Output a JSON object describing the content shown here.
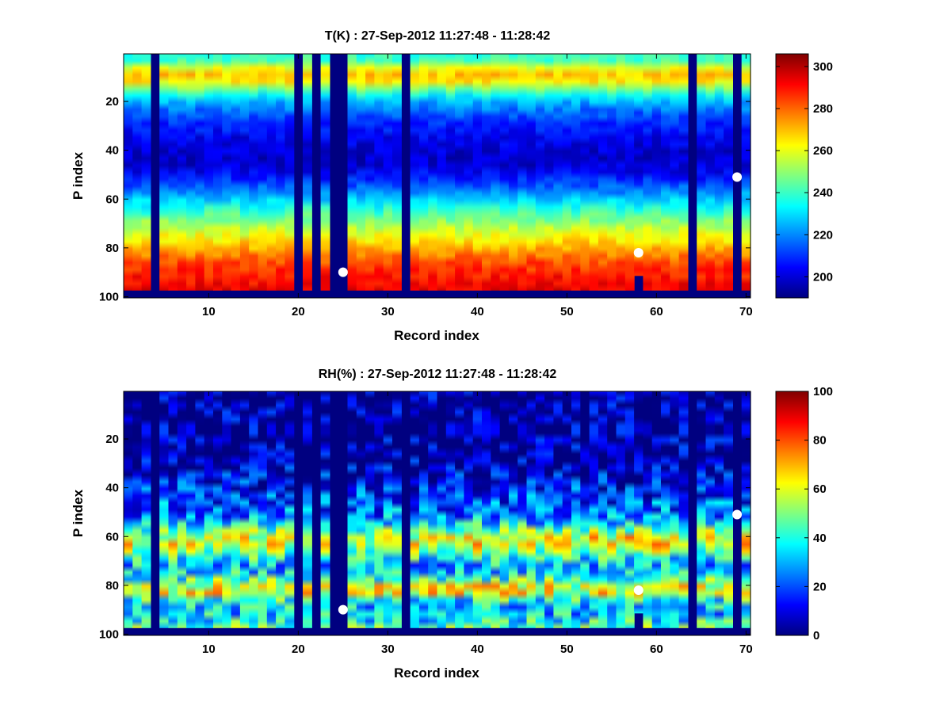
{
  "chart_data": [
    {
      "type": "heatmap",
      "title": "T(K) : 27-Sep-2012 11:27:48 - 11:28:42",
      "xlabel": "Record index",
      "ylabel": "P index",
      "xlim": [
        0.5,
        70.5
      ],
      "ylim": [
        0.5,
        100.5
      ],
      "y_reversed": true,
      "x_ticks": [
        10,
        20,
        30,
        40,
        50,
        60,
        70
      ],
      "x_tick_labels": [
        "10",
        "20",
        "30",
        "40",
        "50",
        "60",
        "70"
      ],
      "y_ticks": [
        20,
        40,
        60,
        80,
        100
      ],
      "y_tick_labels": [
        "20",
        "40",
        "60",
        "80",
        "100"
      ],
      "colormap": "jet",
      "clim": [
        190,
        306
      ],
      "colorbar_ticks": [
        200,
        220,
        240,
        260,
        280,
        300
      ],
      "colorbar_tick_labels": [
        "200",
        "220",
        "240",
        "260",
        "280",
        "300"
      ],
      "bg_value": 190,
      "gap_records": [
        4,
        20,
        22,
        24,
        25,
        32,
        64,
        69
      ],
      "valid_bottom_p": 97,
      "truncated_records": [
        {
          "record": 58,
          "max_p": 91
        },
        {
          "record": 69,
          "max_p": 51
        }
      ],
      "profile": [
        {
          "p": 1,
          "v": 238
        },
        {
          "p": 4,
          "v": 242
        },
        {
          "p": 7,
          "v": 262
        },
        {
          "p": 10,
          "v": 270
        },
        {
          "p": 13,
          "v": 262
        },
        {
          "p": 16,
          "v": 242
        },
        {
          "p": 20,
          "v": 225
        },
        {
          "p": 25,
          "v": 215
        },
        {
          "p": 30,
          "v": 208
        },
        {
          "p": 35,
          "v": 203
        },
        {
          "p": 40,
          "v": 200
        },
        {
          "p": 45,
          "v": 198
        },
        {
          "p": 50,
          "v": 205
        },
        {
          "p": 55,
          "v": 215
        },
        {
          "p": 60,
          "v": 228
        },
        {
          "p": 65,
          "v": 240
        },
        {
          "p": 70,
          "v": 252
        },
        {
          "p": 75,
          "v": 262
        },
        {
          "p": 80,
          "v": 272
        },
        {
          "p": 85,
          "v": 282
        },
        {
          "p": 90,
          "v": 288
        },
        {
          "p": 95,
          "v": 292
        },
        {
          "p": 97,
          "v": 294
        }
      ],
      "variation": 6,
      "markers": [
        {
          "record": 25,
          "p": 90
        },
        {
          "record": 58,
          "p": 82
        },
        {
          "record": 69,
          "p": 51
        }
      ]
    },
    {
      "type": "heatmap",
      "title": "RH(%) : 27-Sep-2012 11:27:48 - 11:28:42",
      "xlabel": "Record index",
      "ylabel": "P index",
      "xlim": [
        0.5,
        70.5
      ],
      "ylim": [
        0.5,
        100.5
      ],
      "y_reversed": true,
      "x_ticks": [
        10,
        20,
        30,
        40,
        50,
        60,
        70
      ],
      "x_tick_labels": [
        "10",
        "20",
        "30",
        "40",
        "50",
        "60",
        "70"
      ],
      "y_ticks": [
        20,
        40,
        60,
        80,
        100
      ],
      "y_tick_labels": [
        "20",
        "40",
        "60",
        "80",
        "100"
      ],
      "colormap": "jet",
      "clim": [
        0,
        100
      ],
      "colorbar_ticks": [
        0,
        20,
        40,
        60,
        80,
        100
      ],
      "colorbar_tick_labels": [
        "0",
        "20",
        "40",
        "60",
        "80",
        "100"
      ],
      "bg_value": 0,
      "gap_records": [
        4,
        20,
        22,
        24,
        25,
        32,
        64,
        69
      ],
      "valid_bottom_p": 97,
      "truncated_records": [
        {
          "record": 58,
          "max_p": 91
        },
        {
          "record": 69,
          "max_p": 51
        }
      ],
      "profile": [
        {
          "p": 1,
          "v": 2
        },
        {
          "p": 25,
          "v": 3
        },
        {
          "p": 32,
          "v": 6
        },
        {
          "p": 38,
          "v": 12
        },
        {
          "p": 45,
          "v": 20
        },
        {
          "p": 52,
          "v": 25
        },
        {
          "p": 56,
          "v": 40
        },
        {
          "p": 60,
          "v": 60
        },
        {
          "p": 64,
          "v": 62
        },
        {
          "p": 68,
          "v": 40
        },
        {
          "p": 72,
          "v": 30
        },
        {
          "p": 76,
          "v": 38
        },
        {
          "p": 80,
          "v": 58
        },
        {
          "p": 83,
          "v": 60
        },
        {
          "p": 86,
          "v": 38
        },
        {
          "p": 90,
          "v": 30
        },
        {
          "p": 94,
          "v": 38
        },
        {
          "p": 97,
          "v": 45
        }
      ],
      "variation": 18,
      "markers": [
        {
          "record": 25,
          "p": 90
        },
        {
          "record": 58,
          "p": 82
        },
        {
          "record": 69,
          "p": 51
        }
      ]
    }
  ]
}
